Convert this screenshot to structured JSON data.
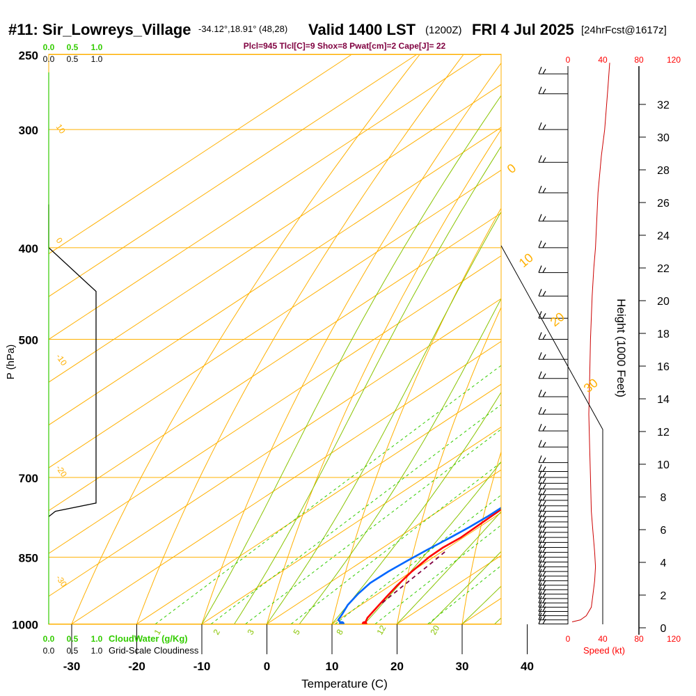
{
  "header": {
    "station": "#11: Sir_Lowreys_Village",
    "coords": "-34.12°,18.91° (48,28)",
    "valid": "Valid 1400 LST",
    "utc": "(1200Z)",
    "date": "FRI 4 Jul 2025",
    "forecast": "[24hrFcst@1617z]"
  },
  "indices": "Plcl=945 Tlcl[C]=9 Shox=8 Pwat[cm]=2 Cape[J]= 22",
  "colors": {
    "temperature": "#ff0000",
    "dewpoint": "#0066ff",
    "isotherm_adiabat": "#ffb000",
    "mixing_ratio": "#33cc00",
    "cloud": "#000000",
    "height": "#cc0000",
    "parcel": "#800040"
  },
  "chart_data": {
    "type": "line",
    "title": "",
    "xlabel": "Temperature (C)",
    "ylabel": "P (hPa)",
    "right_ylabel": "Height (1000 Feet)",
    "x_ticks": [
      "-30",
      "-20",
      "-10",
      "0",
      "10",
      "20",
      "30",
      "40"
    ],
    "p_ticks": [
      "250",
      "300",
      "400",
      "500",
      "700",
      "850",
      "1000"
    ],
    "height_ticks": [
      "0",
      "2",
      "4",
      "6",
      "8",
      "10",
      "12",
      "14",
      "16",
      "18",
      "20",
      "22",
      "24",
      "26",
      "28",
      "30",
      "32"
    ],
    "isotherm_labels": [
      "10",
      "0",
      "-10",
      "-20",
      "-30"
    ],
    "adiabat_labels": [
      "0",
      "10",
      "20",
      "30"
    ],
    "mixing_ratio_labels": [
      "1",
      "2",
      "3",
      "5",
      "8",
      "12",
      "20"
    ],
    "cloud_axis": {
      "top_green": [
        "0.0",
        "0.5",
        "1.0"
      ],
      "top_black": [
        "0.0",
        "0.5",
        "1.0"
      ],
      "bottom_green": [
        "0.0",
        "0.5",
        "1.0"
      ],
      "bottom_black": [
        "0.0",
        "0.5",
        "1.0"
      ],
      "green_label": "CloudWater (g/Kg)",
      "black_label": "Grid-Scale Cloudiness"
    },
    "speed_axis": {
      "ticks_top": [
        "0",
        "40",
        "80",
        "120"
      ],
      "ticks_bottom": [
        "0",
        "40",
        "80",
        "120"
      ],
      "label": "Speed (kt)"
    },
    "series": [
      {
        "name": "Temperature",
        "points": [
          [
            15.0,
            1000
          ],
          [
            14.0,
            985
          ],
          [
            13.0,
            960
          ],
          [
            12.0,
            935
          ],
          [
            11.0,
            910
          ],
          [
            10.0,
            880
          ],
          [
            9.3,
            850
          ],
          [
            9.2,
            830
          ],
          [
            9.6,
            810
          ],
          [
            9.4,
            780
          ],
          [
            9.2,
            750
          ],
          [
            9.5,
            720
          ],
          [
            9.3,
            700
          ],
          [
            9.0,
            670
          ],
          [
            8.3,
            640
          ],
          [
            7.3,
            610
          ],
          [
            6.5,
            580
          ],
          [
            5.8,
            550
          ],
          [
            5.0,
            525
          ],
          [
            4.5,
            500
          ],
          [
            3.5,
            475
          ],
          [
            2.0,
            450
          ],
          [
            0.5,
            430
          ],
          [
            -1.0,
            410
          ],
          [
            -2.5,
            395
          ],
          [
            -4.5,
            375
          ],
          [
            -6.5,
            355
          ],
          [
            -8.5,
            338
          ],
          [
            -10.5,
            320
          ],
          [
            -12.5,
            305
          ],
          [
            -15.0,
            290
          ],
          [
            -18.0,
            276
          ],
          [
            -22.0,
            262
          ]
        ]
      },
      {
        "name": "Dewpoint",
        "points": [
          [
            11.5,
            1000
          ],
          [
            10.0,
            990
          ],
          [
            9.2,
            975
          ],
          [
            8.0,
            955
          ],
          [
            7.0,
            930
          ],
          [
            6.3,
            905
          ],
          [
            6.4,
            880
          ],
          [
            6.8,
            858
          ],
          [
            7.3,
            835
          ],
          [
            8.0,
            810
          ],
          [
            8.5,
            790
          ],
          [
            8.8,
            770
          ],
          [
            8.9,
            750
          ],
          [
            8.8,
            720
          ],
          [
            8.4,
            700
          ],
          [
            7.6,
            670
          ],
          [
            6.7,
            640
          ],
          [
            5.2,
            610
          ],
          [
            4.0,
            580
          ],
          [
            2.8,
            555
          ],
          [
            1.5,
            530
          ],
          [
            0.0,
            500
          ],
          [
            -2.0,
            475
          ],
          [
            -4.0,
            452
          ],
          [
            -6.5,
            430
          ],
          [
            -9.5,
            410
          ],
          [
            -12.5,
            390
          ],
          [
            -16.0,
            370
          ],
          [
            -19.5,
            350
          ],
          [
            -22.0,
            332
          ],
          [
            -24.5,
            312
          ],
          [
            -27.0,
            298
          ],
          [
            -30.5,
            280
          ],
          [
            -34.0,
            262
          ]
        ]
      },
      {
        "name": "Parcel",
        "points": [
          [
            12.8,
            950
          ],
          [
            12.2,
            920
          ],
          [
            11.6,
            890
          ],
          [
            11.0,
            860
          ],
          [
            10.4,
            835
          ]
        ]
      }
    ],
    "cloudiness": [
      [
        0.0,
        360
      ],
      [
        0.0,
        400
      ],
      [
        0.85,
        445
      ],
      [
        0.85,
        745
      ],
      [
        0.12,
        760
      ],
      [
        0.0,
        770
      ]
    ],
    "height_profile": [
      [
        5,
        995
      ],
      [
        15,
        990
      ],
      [
        22,
        980
      ],
      [
        28,
        960
      ],
      [
        30,
        930
      ],
      [
        32,
        900
      ],
      [
        33,
        870
      ],
      [
        32,
        840
      ],
      [
        30,
        800
      ],
      [
        28,
        760
      ],
      [
        27,
        700
      ],
      [
        26,
        650
      ],
      [
        25,
        600
      ],
      [
        26,
        550
      ],
      [
        27,
        500
      ],
      [
        29,
        450
      ],
      [
        31,
        420
      ],
      [
        33,
        400
      ],
      [
        36,
        350
      ],
      [
        40,
        320
      ],
      [
        44,
        300
      ],
      [
        48,
        270
      ],
      [
        50,
        255
      ]
    ],
    "wind_barbs_p": [
      1000,
      990,
      980,
      970,
      960,
      950,
      940,
      930,
      920,
      910,
      900,
      890,
      880,
      870,
      860,
      850,
      840,
      830,
      820,
      810,
      800,
      790,
      780,
      770,
      760,
      750,
      740,
      730,
      720,
      710,
      700,
      690,
      675,
      650,
      625,
      600,
      575,
      550,
      525,
      500,
      475,
      450,
      425,
      400,
      375,
      350,
      325,
      300,
      275,
      262
    ]
  }
}
